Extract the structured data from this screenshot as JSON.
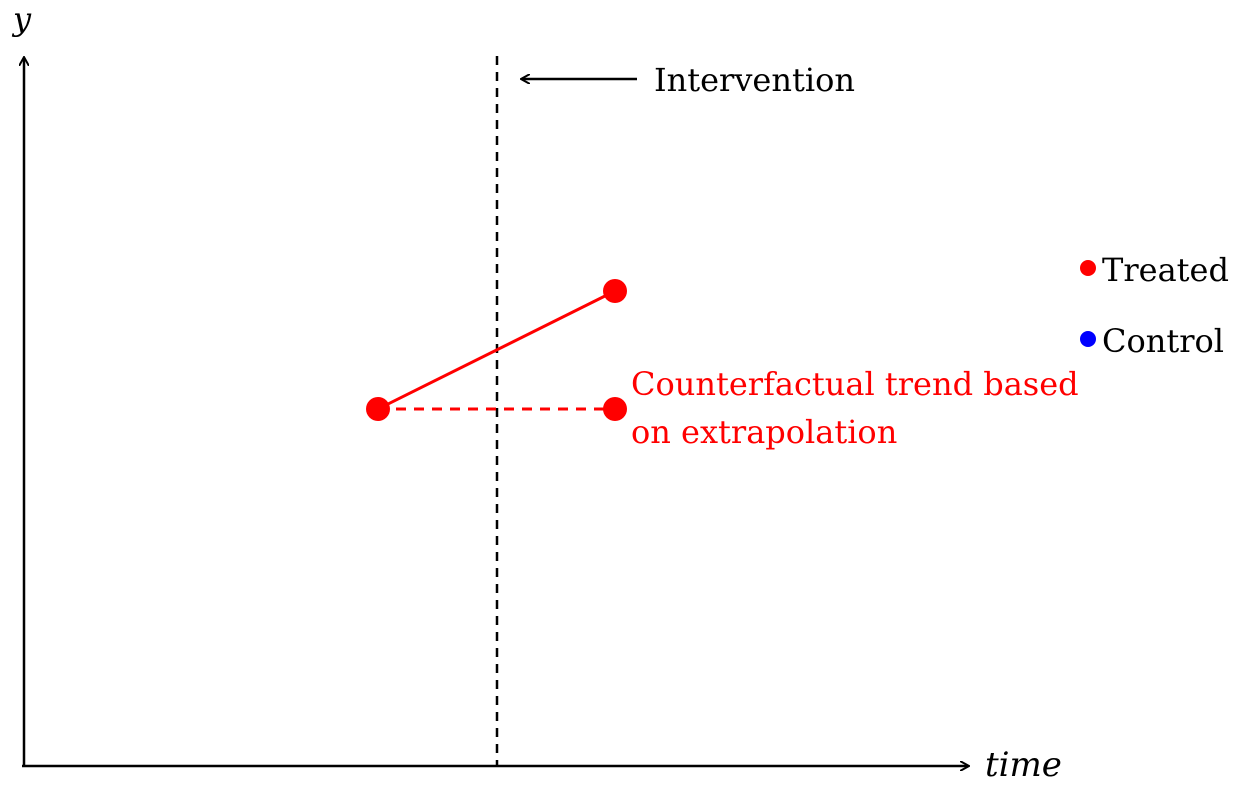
{
  "axes": {
    "x_label": "time",
    "y_label": "y"
  },
  "intervention": {
    "label": "Intervention"
  },
  "annotation": {
    "line1": "Counterfactual trend based",
    "line2": "on extrapolation",
    "color": "#ff0000"
  },
  "legend": {
    "items": [
      {
        "label": "Treated",
        "color": "#ff0000"
      },
      {
        "label": "Control",
        "color": "#0000ff"
      }
    ]
  },
  "chart_data": {
    "type": "scatter",
    "series": [
      {
        "name": "Treated",
        "color": "#ff0000",
        "points": [
          {
            "x": 1,
            "y": 1
          },
          {
            "x": 2,
            "y": 2
          }
        ],
        "style": "solid"
      },
      {
        "name": "Counterfactual",
        "color": "#ff0000",
        "points": [
          {
            "x": 1,
            "y": 1
          },
          {
            "x": 2,
            "y": 1
          }
        ],
        "style": "dashed"
      }
    ]
  }
}
